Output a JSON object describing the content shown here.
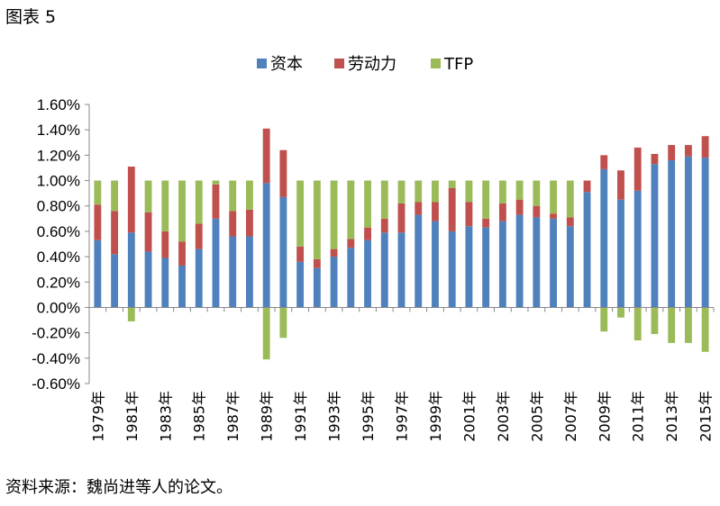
{
  "figure_label": "图表 5",
  "source_note": "资料来源：魏尚进等人的论文。",
  "colors": {
    "资本": "#4f81bd",
    "劳动力": "#c0504d",
    "TFP": "#9bbb59",
    "axis": "#888888"
  },
  "chart_data": {
    "type": "bar",
    "stacked": true,
    "title": "",
    "xlabel": "",
    "ylabel": "",
    "ylim": [
      -0.6,
      1.6
    ],
    "y_unit": "%",
    "yticks": [
      "-0.60%",
      "-0.40%",
      "-0.20%",
      "0.00%",
      "0.20%",
      "0.40%",
      "0.60%",
      "0.80%",
      "1.00%",
      "1.20%",
      "1.40%",
      "1.60%"
    ],
    "grid": false,
    "legend_position": "top-center",
    "legend": [
      "资本",
      "劳动力",
      "TFP"
    ],
    "categories": [
      "1979年",
      "1980年",
      "1981年",
      "1982年",
      "1983年",
      "1984年",
      "1985年",
      "1986年",
      "1987年",
      "1988年",
      "1989年",
      "1990年",
      "1991年",
      "1992年",
      "1993年",
      "1994年",
      "1995年",
      "1996年",
      "1997年",
      "1998年",
      "1999年",
      "2000年",
      "2001年",
      "2002年",
      "2003年",
      "2004年",
      "2005年",
      "2006年",
      "2007年",
      "2008年",
      "2009年",
      "2010年",
      "2011年",
      "2012年",
      "2013年",
      "2014年",
      "2015年"
    ],
    "x_tick_labels": [
      "1979年",
      "1981年",
      "1983年",
      "1985年",
      "1987年",
      "1989年",
      "1991年",
      "1993年",
      "1995年",
      "1997年",
      "1999年",
      "2001年",
      "2003年",
      "2005年",
      "2007年",
      "2009年",
      "2011年",
      "2013年",
      "2015年"
    ],
    "series": [
      {
        "name": "资本",
        "values": [
          0.53,
          0.42,
          0.59,
          0.44,
          0.39,
          0.33,
          0.46,
          0.7,
          0.56,
          0.56,
          0.98,
          0.87,
          0.36,
          0.31,
          0.4,
          0.47,
          0.53,
          0.59,
          0.59,
          0.73,
          0.68,
          0.6,
          0.64,
          0.63,
          0.68,
          0.73,
          0.71,
          0.7,
          0.64,
          0.91,
          1.09,
          0.85,
          0.92,
          1.13,
          1.16,
          1.19,
          1.18
        ]
      },
      {
        "name": "劳动力",
        "values": [
          0.28,
          0.34,
          0.52,
          0.31,
          0.21,
          0.19,
          0.2,
          0.27,
          0.2,
          0.21,
          0.43,
          0.37,
          0.12,
          0.07,
          0.06,
          0.07,
          0.1,
          0.11,
          0.23,
          0.1,
          0.15,
          0.34,
          0.19,
          0.07,
          0.14,
          0.12,
          0.09,
          0.04,
          0.07,
          0.09,
          0.11,
          0.23,
          0.34,
          0.08,
          0.12,
          0.09,
          0.17
        ]
      },
      {
        "name": "TFP",
        "values": [
          0.19,
          0.24,
          -0.11,
          0.25,
          0.4,
          0.48,
          0.34,
          0.03,
          0.24,
          0.23,
          -0.41,
          -0.24,
          0.52,
          0.62,
          0.54,
          0.46,
          0.37,
          0.3,
          0.18,
          0.17,
          0.17,
          0.06,
          0.17,
          0.3,
          0.18,
          0.15,
          0.2,
          0.26,
          0.29,
          0.0,
          -0.19,
          -0.08,
          -0.26,
          -0.21,
          -0.28,
          -0.28,
          -0.35
        ]
      }
    ]
  }
}
